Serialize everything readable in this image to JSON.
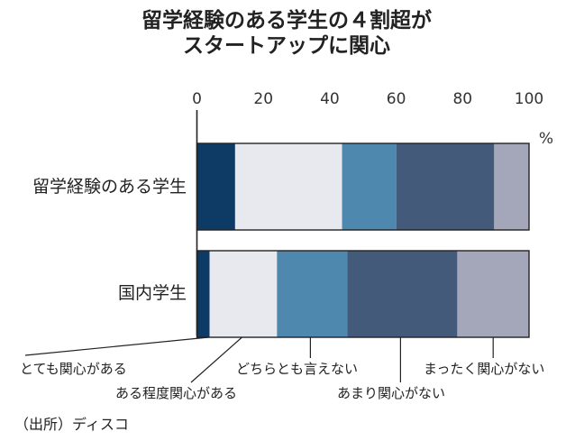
{
  "chart_data": {
    "type": "bar",
    "orientation": "horizontal",
    "stacked": true,
    "title": [
      "留学経験のある学生の４割超が",
      "スタートアップに関心"
    ],
    "unit": "%",
    "xlim": [
      0,
      100
    ],
    "xticks": [
      0,
      20,
      40,
      60,
      80,
      100
    ],
    "grid": false,
    "categories": [
      "留学経験のある学生",
      "国内学生"
    ],
    "series": [
      {
        "name": "とても関心がある",
        "color": "#0e3a66",
        "values": [
          11.5,
          3.8
        ]
      },
      {
        "name": "ある程度関心がある",
        "color": "#e8e9ef",
        "values": [
          32.2,
          20.3
        ]
      },
      {
        "name": "どちらとも言えない",
        "color": "#4e88ae",
        "values": [
          16.4,
          21.2
        ]
      },
      {
        "name": "あまり関心がない",
        "color": "#445a7a",
        "values": [
          29.4,
          33.1
        ]
      },
      {
        "name": "まったく関心がない",
        "color": "#a3a7b9",
        "values": [
          10.5,
          21.6
        ]
      }
    ],
    "source": "（出所）ディスコ"
  }
}
